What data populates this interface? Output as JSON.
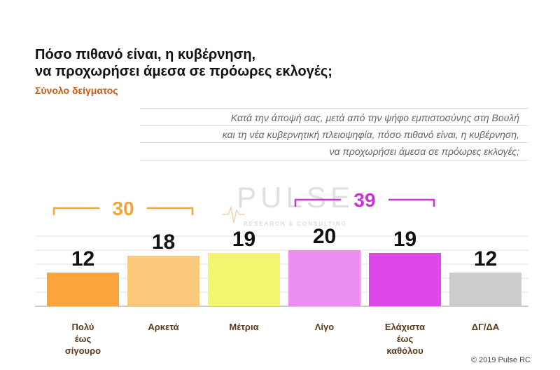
{
  "title_lines": [
    "Πόσο πιθανό είναι, η κυβέρνηση,",
    "να προχωρήσει άμεσα σε πρόωρες εκλογές;"
  ],
  "subtitle": "Σύνολο δείγματος",
  "question_lines": [
    "Κατά την άποψή σας, μετά από την ψήφο εμπιστοσύνης στη Βουλή",
    "και τη νέα κυβερνητική πλειοψηφία, πόσο πιθανό είναι, η κυβέρνηση,",
    "να προχωρήσει άμεσα σε πρόωρες εκλογές;"
  ],
  "watermark": {
    "brand": "PULSE",
    "tagline": "RESEARCH & CONSULTING"
  },
  "footer": "© 2019 Pulse RC",
  "chart_data": {
    "type": "bar",
    "categories": [
      [
        "Πολύ",
        "έως",
        "σίγουρο"
      ],
      [
        "Αρκετά"
      ],
      [
        "Μέτρια"
      ],
      [
        "Λίγο"
      ],
      [
        "Ελάχιστα",
        "έως",
        "καθόλου"
      ],
      [
        "ΔΓ/ΔΑ"
      ]
    ],
    "values": [
      12,
      18,
      19,
      20,
      19,
      12
    ],
    "colors": [
      "#fba43c",
      "#fbc97a",
      "#f2f56e",
      "#ec8ef0",
      "#de47ea",
      "#cccccc"
    ],
    "ylim": [
      0,
      25
    ],
    "grid": true,
    "groups": [
      {
        "label": "30",
        "from": 0,
        "to": 1,
        "color": "#f2a53a"
      },
      {
        "label": "39",
        "from": 3,
        "to": 4,
        "color": "#c934d6"
      }
    ]
  }
}
